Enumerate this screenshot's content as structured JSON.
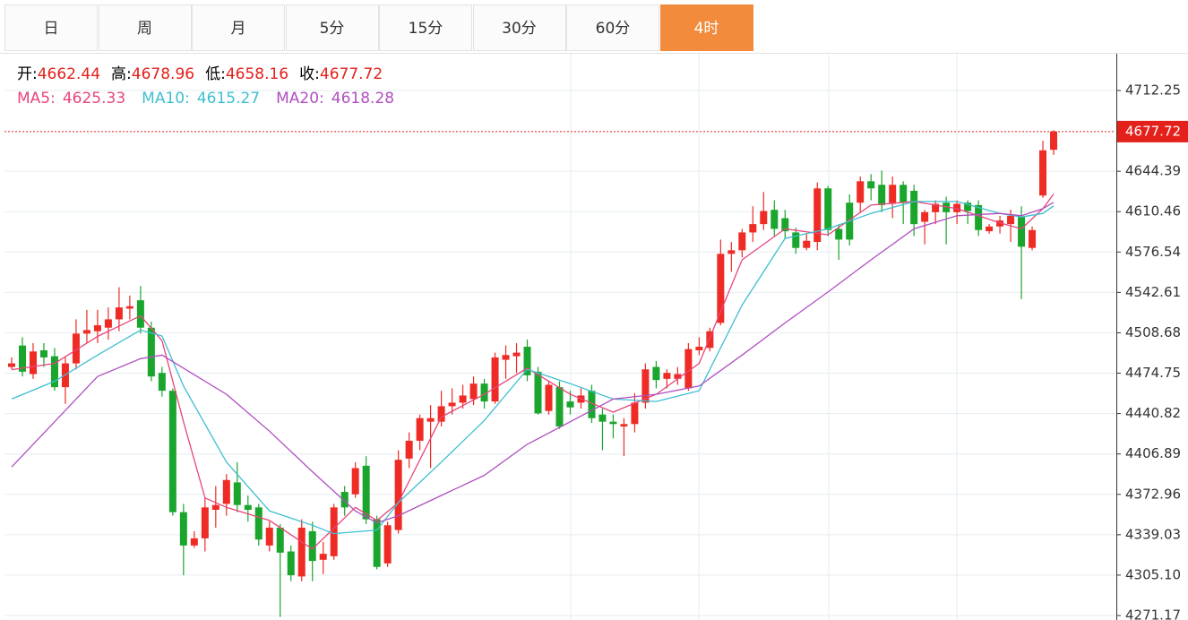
{
  "tabs": [
    "日",
    "周",
    "月",
    "5分",
    "15分",
    "30分",
    "60分",
    "4时"
  ],
  "active_tab": 7,
  "chart_data": {
    "type": "candlestick",
    "ohlc_labels": [
      "开:",
      "高:",
      "低:",
      "收:"
    ],
    "up_color": "#ee2b24",
    "down_color": "#1aa52d",
    "grid": true,
    "ylim": [
      4267.41,
      4743.11
    ],
    "yticks": [
      4712.25,
      4644.39,
      4610.46,
      4576.54,
      4542.61,
      4508.68,
      4474.75,
      4440.82,
      4406.89,
      4372.96,
      4339.03,
      {
        "value": 4305.1,
        "label": "4305.10"
      },
      4271.17
    ],
    "open": [
      4480,
      4498,
      4474,
      4494,
      4489,
      4463,
      4483,
      4508,
      4510,
      4513,
      4520,
      4529,
      4536,
      4513,
      4475,
      4460,
      4358,
      4330,
      4336,
      4360,
      4365,
      4383,
      4364,
      4362,
      4330,
      4345,
      4325,
      4304,
      4342,
      4318,
      4321,
      4375,
      4373,
      4397,
      4352,
      4315,
      4343,
      4403,
      4418,
      4434,
      4434,
      4447,
      4450,
      4453,
      4466,
      4451,
      4486,
      4489,
      4497,
      4476,
      4443,
      4463,
      4451,
      4450,
      4460,
      4440,
      4434,
      4430,
      4432,
      4450,
      4480,
      4470,
      4470,
      4462,
      4494,
      4496,
      4517,
      4575,
      4578,
      4593,
      4600,
      4612,
      4605,
      4593,
      4580,
      4585,
      4630,
      4596,
      4618,
      4618,
      4636,
      4633,
      4617,
      4633,
      4628,
      4602,
      4610,
      4618,
      4610,
      4618,
      4616,
      4594,
      4598,
      4600,
      4606,
      4580,
      4624,
      4662.44
    ],
    "high": [
      4488,
      4505,
      4500,
      4500,
      4496,
      4488,
      4520,
      4528,
      4528,
      4530,
      4547,
      4540,
      4548,
      4518,
      4480,
      4462,
      4365,
      4342,
      4370,
      4380,
      4390,
      4400,
      4372,
      4365,
      4350,
      4348,
      4330,
      4352,
      4350,
      4333,
      4365,
      4380,
      4400,
      4405,
      4355,
      4350,
      4410,
      4425,
      4440,
      4448,
      4460,
      4462,
      4465,
      4472,
      4470,
      4492,
      4498,
      4500,
      4503,
      4480,
      4468,
      4468,
      4460,
      4462,
      4465,
      4445,
      4440,
      4437,
      4458,
      4483,
      4485,
      4478,
      4480,
      4500,
      4505,
      4513,
      4587,
      4585,
      4596,
      4615,
      4627,
      4620,
      4612,
      4597,
      4592,
      4635,
      4632,
      4600,
      4625,
      4640,
      4642,
      4645,
      4640,
      4636,
      4633,
      4612,
      4620,
      4623,
      4620,
      4620,
      4620,
      4600,
      4607,
      4612,
      4615,
      4598,
      4670,
      4678.96
    ],
    "low": [
      4478,
      4472,
      4470,
      4480,
      4460,
      4449,
      4478,
      4500,
      4500,
      4503,
      4510,
      4520,
      4508,
      4468,
      4455,
      4355,
      4305,
      4328,
      4325,
      4345,
      4355,
      4358,
      4350,
      4330,
      4325,
      4270,
      4300,
      4300,
      4300,
      4306,
      4318,
      4355,
      4370,
      4348,
      4310,
      4312,
      4340,
      4395,
      4410,
      4395,
      4430,
      4440,
      4445,
      4448,
      4445,
      4449,
      4470,
      4475,
      4468,
      4440,
      4440,
      4428,
      4440,
      4445,
      4433,
      4410,
      4420,
      4405,
      4425,
      4445,
      4462,
      4462,
      4465,
      4460,
      4490,
      4493,
      4515,
      4560,
      4572,
      4585,
      4595,
      4590,
      4588,
      4575,
      4578,
      4578,
      4590,
      4570,
      4582,
      4610,
      4620,
      4610,
      4605,
      4600,
      4590,
      4583,
      4600,
      4583,
      4600,
      4600,
      4590,
      4592,
      4592,
      4585,
      4537,
      4578,
      4622,
      4658.16
    ],
    "close": [
      4483,
      4476,
      4493,
      4488,
      4463,
      4483,
      4508,
      4511,
      4515,
      4520,
      4530,
      4531,
      4513,
      4472,
      4460,
      4358,
      4330,
      4336,
      4362,
      4364,
      4385,
      4364,
      4360,
      4335,
      4345,
      4324,
      4305,
      4345,
      4317,
      4323,
      4362,
      4362,
      4395,
      4352,
      4312,
      4347,
      4402,
      4418,
      4437,
      4437,
      4447,
      4450,
      4456,
      4466,
      4451,
      4488,
      4490,
      4492,
      4473,
      4441,
      4465,
      4430,
      4446,
      4456,
      4437,
      4434,
      4432,
      4432,
      4450,
      4478,
      4469,
      4475,
      4474,
      4495,
      4497,
      4510,
      4575,
      4578,
      4593,
      4600,
      4611,
      4596,
      4594,
      4580,
      4586,
      4630,
      4595,
      4587,
      4587,
      4636,
      4630,
      4616,
      4633,
      4618,
      4600,
      4610,
      4617,
      4610,
      4617,
      4611,
      4595,
      4598,
      4603,
      4607,
      4581,
      4595,
      4662,
      4677.72
    ],
    "series": [
      {
        "name": "MA5:",
        "color": "#e8457c",
        "x": [
          0,
          4,
          8,
          12,
          14,
          16,
          18,
          20,
          24,
          28,
          32,
          34,
          36,
          40,
          44,
          48,
          52,
          56,
          60,
          64,
          68,
          72,
          76,
          80,
          84,
          88,
          92,
          94,
          96,
          97
        ],
        "values": [
          4477.7,
          4483,
          4505.6,
          4523,
          4502,
          4434,
          4370,
          4362,
          4351,
          4327,
          4362,
          4351,
          4366,
          4438,
          4457,
          4479,
          4457,
          4442,
          4457,
          4483,
          4570,
          4596,
          4591,
          4616,
          4619,
          4613,
          4601,
          4596,
          4613,
          4625.33
        ]
      },
      {
        "name": "MA10:",
        "color": "#3ebfd0",
        "x": [
          0,
          4,
          8,
          12,
          14,
          16,
          20,
          24,
          28,
          30,
          34,
          36,
          40,
          44,
          48,
          52,
          56,
          60,
          64,
          68,
          72,
          76,
          80,
          84,
          88,
          92,
          94,
          96,
          97
        ],
        "values": [
          4453,
          4468,
          4490,
          4511,
          4506,
          4464,
          4400,
          4359,
          4347,
          4340,
          4343,
          4366,
          4400,
          4435,
          4478,
          4466,
          4453,
          4451,
          4460,
          4532,
          4588,
          4596,
          4609,
          4619,
          4619,
          4609,
          4606,
          4609,
          4615.27
        ]
      },
      {
        "name": "MA20:",
        "color": "#b04fc0",
        "x": [
          0,
          4,
          8,
          12,
          14,
          16,
          20,
          24,
          28,
          32,
          34,
          36,
          40,
          44,
          48,
          52,
          56,
          60,
          64,
          68,
          72,
          76,
          80,
          84,
          88,
          92,
          94,
          96,
          97
        ],
        "values": [
          4396,
          4434,
          4472,
          4487,
          4490,
          4479,
          4457,
          4426,
          4392,
          4359,
          4349,
          4355,
          4372,
          4389,
          4415,
          4434,
          4453,
          4457,
          4464,
          4490,
          4517,
          4543,
          4570,
          4596,
          4607,
          4609,
          4607,
          4613,
          4618.28
        ]
      }
    ]
  }
}
